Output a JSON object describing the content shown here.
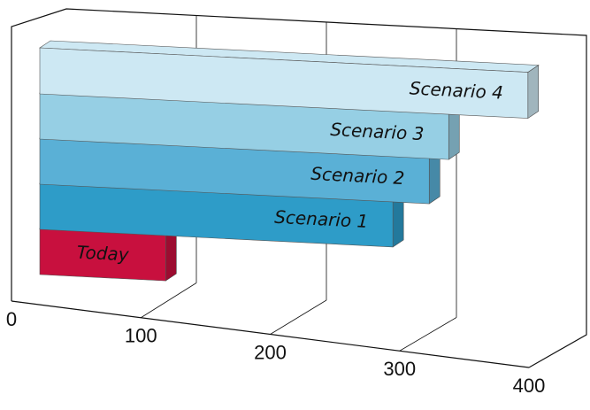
{
  "chart_data": {
    "type": "bar3d",
    "categories": [
      "Today",
      "Scenario 1",
      "Scenario 2",
      "Scenario 3",
      "Scenario 4"
    ],
    "values": [
      97,
      272,
      300,
      315,
      376
    ],
    "colors": [
      "#c8103e",
      "#2e9cc8",
      "#5ab0d6",
      "#96cfe4",
      "#cde8f3"
    ],
    "xlim": [
      0,
      400
    ],
    "xticks": [
      0,
      100,
      200,
      300,
      400
    ],
    "grid": true
  }
}
